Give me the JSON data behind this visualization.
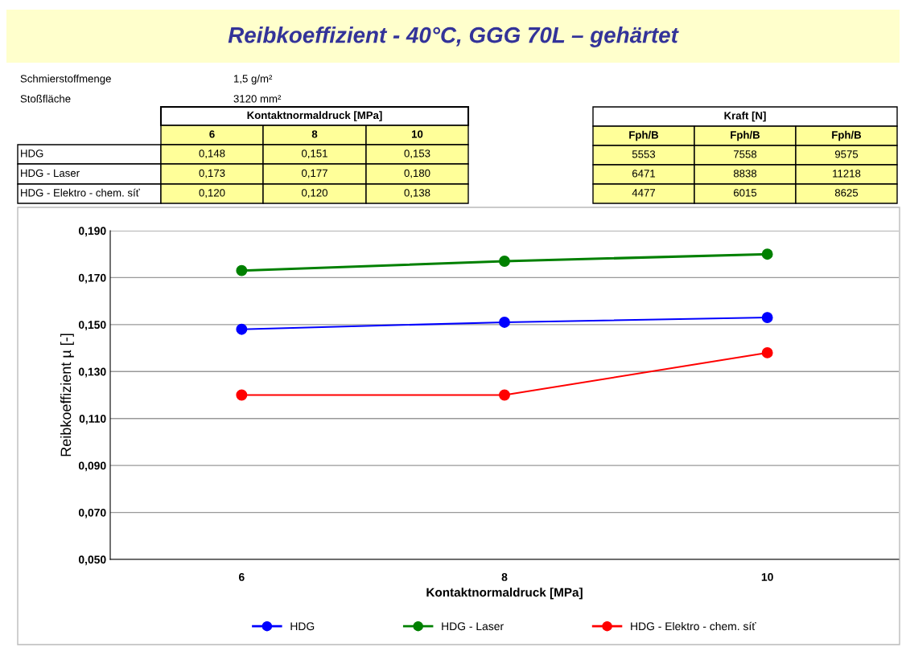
{
  "chart_data": [
    {
      "type": "other",
      "title": "Reibkoeffizient - 40°C, GGG 70L – gehärtet",
      "subtitle": "Kontaktnormaldruck [MPa]",
      "categories": [
        "6",
        "8",
        "10"
      ],
      "series": [
        {
          "name": "HDG",
          "values": [
            0.148,
            0.151,
            0.153
          ],
          "value_labels": [
            "0,148",
            "0,151",
            "0,153"
          ]
        },
        {
          "name": "HDG - Laser",
          "values": [
            0.173,
            0.177,
            0.18
          ],
          "value_labels": [
            "0,173",
            "0,177",
            "0,180"
          ]
        },
        {
          "name": "HDG - Elektro - chem. síť",
          "values": [
            0.12,
            0.12,
            0.138
          ],
          "value_labels": [
            "0,120",
            "0,120",
            "0,138"
          ]
        }
      ],
      "annotations": [
        "Schmierstoffmenge",
        "1,5 g/m²",
        "Stoßfläche",
        "3120 mm²"
      ]
    },
    {
      "type": "other",
      "title": "Kraft [N]",
      "categories": [
        "Fph/B",
        "Fph/B",
        "Fph/B"
      ],
      "series": [
        {
          "values": [
            5553,
            7558,
            9575
          ],
          "value_labels": [
            "5553",
            "7558",
            "9575"
          ]
        },
        {
          "values": [
            6471,
            8838,
            11218
          ],
          "value_labels": [
            "6471",
            "8838",
            "11218"
          ]
        },
        {
          "values": [
            4477,
            6015,
            8625
          ],
          "value_labels": [
            "4477",
            "6015",
            "8625"
          ]
        }
      ]
    },
    {
      "type": "line",
      "categories": [
        "6",
        "8",
        "10"
      ],
      "series": [
        {
          "name": "HDG",
          "color": "#0000ff",
          "values": [
            0.148,
            0.151,
            0.153
          ]
        },
        {
          "name": "HDG - Laser",
          "color": "#008000",
          "values": [
            0.173,
            0.177,
            0.18
          ]
        },
        {
          "name": "HDG - Elektro - chem. síť",
          "color": "#ff0000",
          "values": [
            0.12,
            0.12,
            0.138
          ]
        }
      ],
      "xlabel": "Kontaktnormaldruck [MPa]",
      "ylabel": "Reibkoeffizient µ [-]",
      "ylim": [
        0.05,
        0.19
      ],
      "yticks": [
        {
          "value": 0.05,
          "label": "0,050"
        },
        {
          "value": 0.07,
          "label": "0,070"
        },
        {
          "value": 0.09,
          "label": "0,090"
        },
        {
          "value": 0.11,
          "label": "0,110"
        },
        {
          "value": 0.13,
          "label": "0,130"
        },
        {
          "value": 0.15,
          "label": "0,150"
        },
        {
          "value": 0.17,
          "label": "0,170"
        },
        {
          "value": 0.19,
          "label": "0,190"
        }
      ],
      "grid": "y",
      "legend": "bottom",
      "marker": "circle",
      "line_style": "solid"
    }
  ]
}
